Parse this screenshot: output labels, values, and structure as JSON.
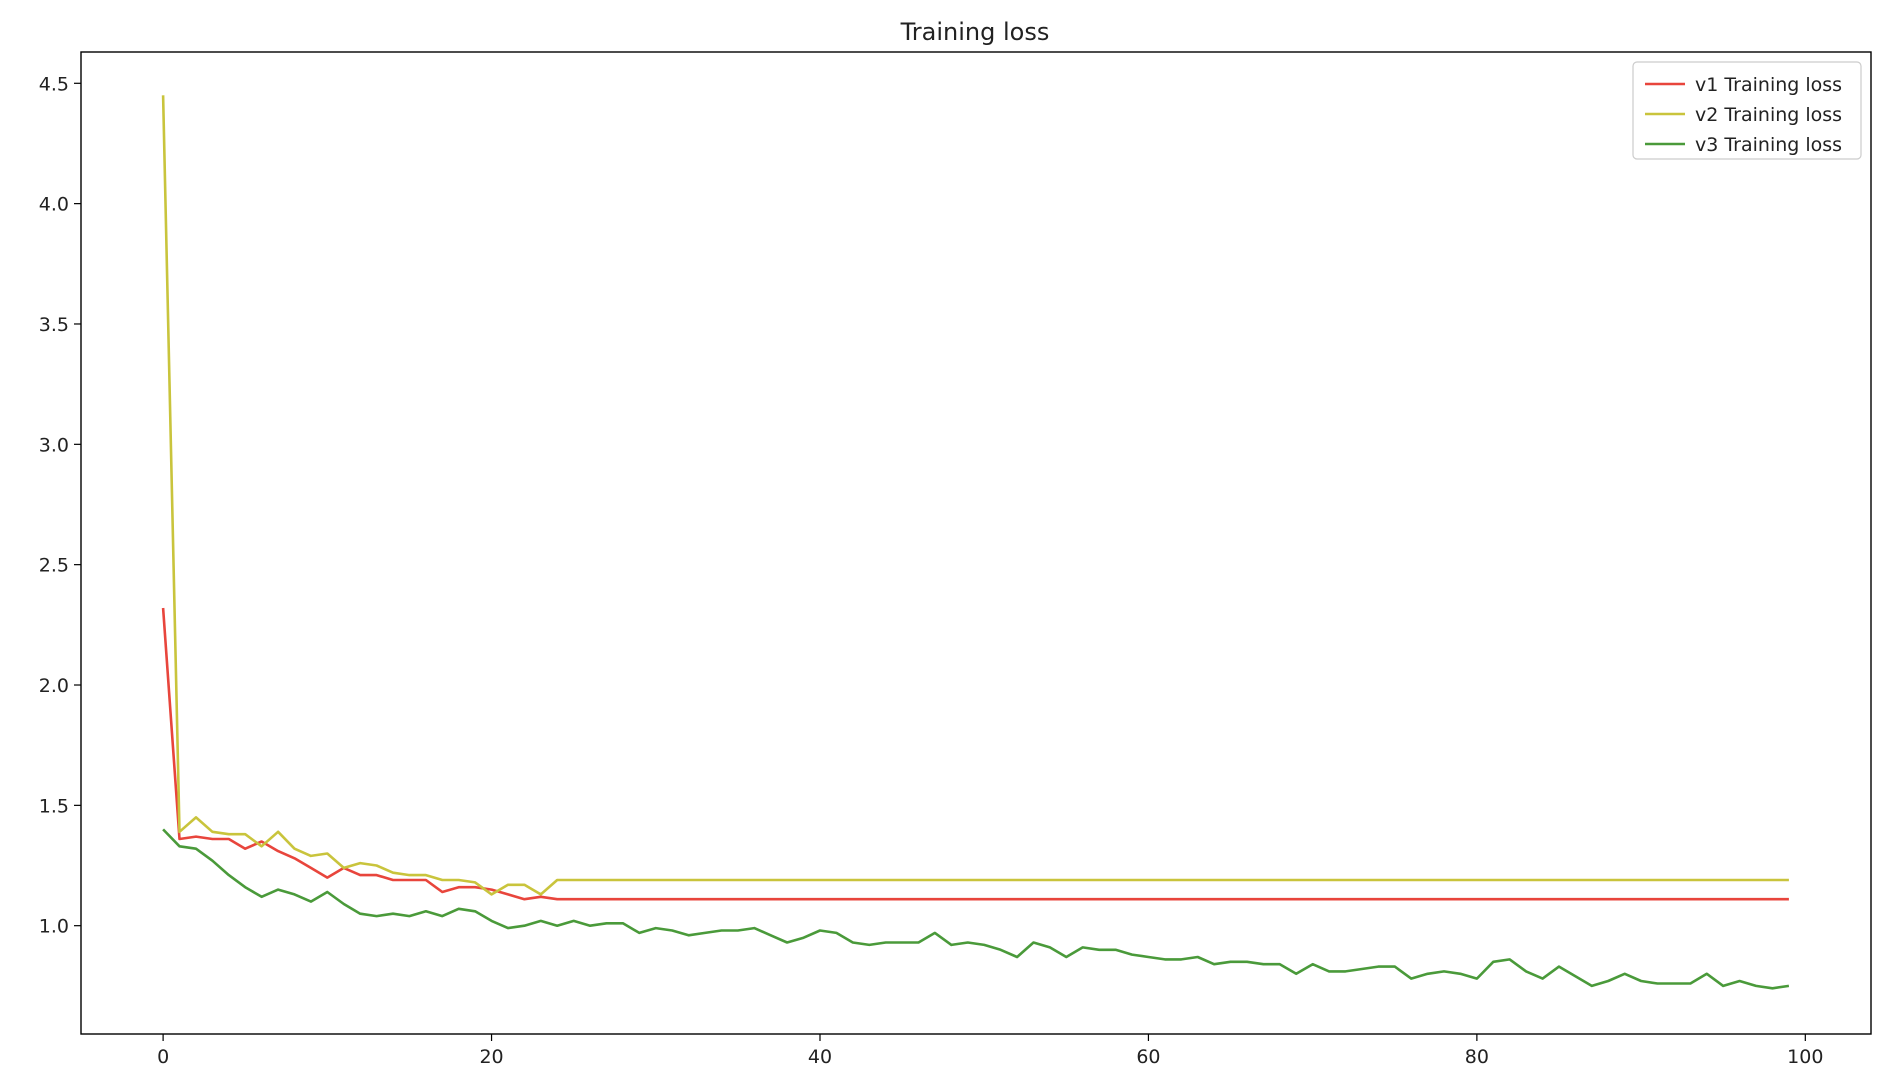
{
  "chart_data": {
    "type": "line",
    "title": "Training loss",
    "xlabel": "",
    "ylabel": "",
    "xlim": [
      -5,
      104
    ],
    "ylim": [
      0.55,
      4.63
    ],
    "xticks": [
      0,
      20,
      40,
      60,
      80,
      100
    ],
    "yticks": [
      1.0,
      1.5,
      2.0,
      2.5,
      3.0,
      3.5,
      4.0,
      4.5
    ],
    "xtick_labels": [
      "0",
      "20",
      "40",
      "60",
      "80",
      "100"
    ],
    "ytick_labels": [
      "1.0",
      "1.5",
      "2.0",
      "2.5",
      "3.0",
      "3.5",
      "4.0",
      "4.5"
    ],
    "grid": false,
    "legend_position": "top-right",
    "series": [
      {
        "name": "v1 Training loss",
        "color": "#e8453c",
        "values": [
          2.32,
          1.36,
          1.37,
          1.36,
          1.36,
          1.32,
          1.35,
          1.31,
          1.28,
          1.24,
          1.2,
          1.24,
          1.21,
          1.21,
          1.19,
          1.19,
          1.19,
          1.14,
          1.16,
          1.16,
          1.15,
          1.13,
          1.11,
          1.12,
          1.11,
          1.11,
          1.11,
          1.11,
          1.11,
          1.11,
          1.11,
          1.11,
          1.11,
          1.11,
          1.11,
          1.11,
          1.11,
          1.11,
          1.11,
          1.11,
          1.11,
          1.11,
          1.11,
          1.11,
          1.11,
          1.11,
          1.11,
          1.11,
          1.11,
          1.11,
          1.11,
          1.11,
          1.11,
          1.11,
          1.11,
          1.11,
          1.11,
          1.11,
          1.11,
          1.11,
          1.11,
          1.11,
          1.11,
          1.11,
          1.11,
          1.11,
          1.11,
          1.11,
          1.11,
          1.11,
          1.11,
          1.11,
          1.11,
          1.11,
          1.11,
          1.11,
          1.11,
          1.11,
          1.11,
          1.11,
          1.11,
          1.11,
          1.11,
          1.11,
          1.11,
          1.11,
          1.11,
          1.11,
          1.11,
          1.11,
          1.11,
          1.11,
          1.11,
          1.11,
          1.11,
          1.11,
          1.11,
          1.11,
          1.11,
          1.11
        ]
      },
      {
        "name": "v2 Training loss",
        "color": "#c9c43c",
        "values": [
          4.45,
          1.39,
          1.45,
          1.39,
          1.38,
          1.38,
          1.33,
          1.39,
          1.32,
          1.29,
          1.3,
          1.24,
          1.26,
          1.25,
          1.22,
          1.21,
          1.21,
          1.19,
          1.19,
          1.18,
          1.13,
          1.17,
          1.17,
          1.13,
          1.19,
          1.19,
          1.19,
          1.19,
          1.19,
          1.19,
          1.19,
          1.19,
          1.19,
          1.19,
          1.19,
          1.19,
          1.19,
          1.19,
          1.19,
          1.19,
          1.19,
          1.19,
          1.19,
          1.19,
          1.19,
          1.19,
          1.19,
          1.19,
          1.19,
          1.19,
          1.19,
          1.19,
          1.19,
          1.19,
          1.19,
          1.19,
          1.19,
          1.19,
          1.19,
          1.19,
          1.19,
          1.19,
          1.19,
          1.19,
          1.19,
          1.19,
          1.19,
          1.19,
          1.19,
          1.19,
          1.19,
          1.19,
          1.19,
          1.19,
          1.19,
          1.19,
          1.19,
          1.19,
          1.19,
          1.19,
          1.19,
          1.19,
          1.19,
          1.19,
          1.19,
          1.19,
          1.19,
          1.19,
          1.19,
          1.19,
          1.19,
          1.19,
          1.19,
          1.19,
          1.19,
          1.19,
          1.19,
          1.19,
          1.19,
          1.19
        ]
      },
      {
        "name": "v3 Training loss",
        "color": "#4a9a3a",
        "values": [
          1.4,
          1.33,
          1.32,
          1.27,
          1.21,
          1.16,
          1.12,
          1.15,
          1.13,
          1.1,
          1.14,
          1.09,
          1.05,
          1.04,
          1.05,
          1.04,
          1.06,
          1.04,
          1.07,
          1.06,
          1.02,
          0.99,
          1.0,
          1.02,
          1.0,
          1.02,
          1.0,
          1.01,
          1.01,
          0.97,
          0.99,
          0.98,
          0.96,
          0.97,
          0.98,
          0.98,
          0.99,
          0.96,
          0.93,
          0.95,
          0.98,
          0.97,
          0.93,
          0.92,
          0.93,
          0.93,
          0.93,
          0.97,
          0.92,
          0.93,
          0.92,
          0.9,
          0.87,
          0.93,
          0.91,
          0.87,
          0.91,
          0.9,
          0.9,
          0.88,
          0.87,
          0.86,
          0.86,
          0.87,
          0.84,
          0.85,
          0.85,
          0.84,
          0.84,
          0.8,
          0.84,
          0.81,
          0.81,
          0.82,
          0.83,
          0.83,
          0.78,
          0.8,
          0.81,
          0.8,
          0.78,
          0.85,
          0.86,
          0.81,
          0.78,
          0.83,
          0.79,
          0.75,
          0.77,
          0.8,
          0.77,
          0.76,
          0.76,
          0.76,
          0.8,
          0.75,
          0.77,
          0.75,
          0.74,
          0.75
        ]
      }
    ]
  }
}
